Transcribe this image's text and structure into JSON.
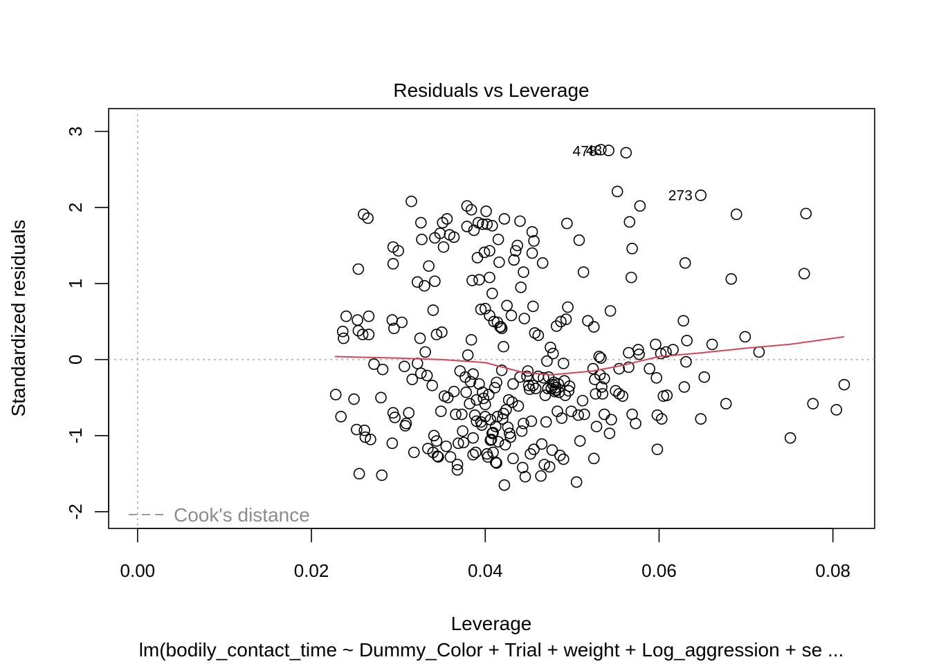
{
  "chart_data": {
    "type": "scatter",
    "title": "Residuals vs Leverage",
    "xlabel": "Leverage",
    "ylabel": "Standardized residuals",
    "subtitle": "lm(bodily_contact_time ~ Dummy_Color + Trial + weight + Log_aggression + se ...",
    "xlim": [
      -0.00333,
      0.0848
    ],
    "ylim": [
      -2.22,
      3.3
    ],
    "x_ticks": [
      0.0,
      0.02,
      0.04,
      0.06,
      0.08
    ],
    "x_tick_labels": [
      "0.00",
      "0.02",
      "0.04",
      "0.06",
      "0.08"
    ],
    "y_ticks": [
      -2,
      -1,
      0,
      1,
      2,
      3
    ],
    "y_tick_labels": [
      "-2",
      "-1",
      "0",
      "1",
      "2",
      "3"
    ],
    "legend": {
      "label": "Cook's distance",
      "position": "bottom-left",
      "color": "#8c8c8c"
    },
    "reference_lines": {
      "h": 0,
      "v": 0,
      "style": "dotted",
      "color": "#aaaaaa"
    },
    "smoother_color": "#d9435a",
    "annotations": [
      {
        "text": "478",
        "x": 0.0538,
        "y": 2.74
      },
      {
        "text": "273",
        "x": 0.0648,
        "y": 2.16
      },
      {
        "text": "43",
        "x": 0.0544,
        "y": 2.75
      }
    ],
    "smoother": [
      {
        "x": 0.0227,
        "y": 0.04
      },
      {
        "x": 0.03,
        "y": 0.02
      },
      {
        "x": 0.035,
        "y": 0.0
      },
      {
        "x": 0.04,
        "y": -0.04
      },
      {
        "x": 0.0444,
        "y": -0.17
      },
      {
        "x": 0.0476,
        "y": -0.2
      },
      {
        "x": 0.0524,
        "y": -0.15
      },
      {
        "x": 0.0556,
        "y": -0.08
      },
      {
        "x": 0.06,
        "y": 0.04
      },
      {
        "x": 0.065,
        "y": 0.09
      },
      {
        "x": 0.07,
        "y": 0.15
      },
      {
        "x": 0.075,
        "y": 0.2
      },
      {
        "x": 0.0813,
        "y": 0.3
      }
    ],
    "points": [
      [
        0.0228,
        -0.46
      ],
      [
        0.0234,
        -0.75
      ],
      [
        0.0236,
        0.37
      ],
      [
        0.0237,
        0.28
      ],
      [
        0.024,
        0.57
      ],
      [
        0.0249,
        -0.52
      ],
      [
        0.0252,
        -0.92
      ],
      [
        0.0253,
        0.52
      ],
      [
        0.0254,
        0.38
      ],
      [
        0.0254,
        1.19
      ],
      [
        0.0255,
        -1.5
      ],
      [
        0.0259,
        0.33
      ],
      [
        0.026,
        1.91
      ],
      [
        0.0261,
        -0.93
      ],
      [
        0.0262,
        -1.02
      ],
      [
        0.0265,
        1.86
      ],
      [
        0.0266,
        0.57
      ],
      [
        0.0266,
        0.33
      ],
      [
        0.0268,
        -1.05
      ],
      [
        0.0272,
        -0.06
      ],
      [
        0.028,
        -0.5
      ],
      [
        0.0281,
        -1.52
      ],
      [
        0.0282,
        -0.13
      ],
      [
        0.0293,
        -1.1
      ],
      [
        0.0293,
        0.52
      ],
      [
        0.0294,
        1.48
      ],
      [
        0.0294,
        1.26
      ],
      [
        0.0294,
        -0.7
      ],
      [
        0.0295,
        0.41
      ],
      [
        0.0296,
        -0.76
      ],
      [
        0.03,
        1.43
      ],
      [
        0.0304,
        0.49
      ],
      [
        0.0307,
        -0.09
      ],
      [
        0.0308,
        -0.87
      ],
      [
        0.0309,
        -0.84
      ],
      [
        0.0312,
        -0.7
      ],
      [
        0.0315,
        2.08
      ],
      [
        0.0316,
        -0.26
      ],
      [
        0.0318,
        -1.22
      ],
      [
        0.0322,
        -0.05
      ],
      [
        0.0322,
        1.02
      ],
      [
        0.0325,
        0.28
      ],
      [
        0.0326,
        -0.18
      ],
      [
        0.0326,
        1.8
      ],
      [
        0.0327,
        1.58
      ],
      [
        0.033,
        0.97
      ],
      [
        0.0331,
        0.1
      ],
      [
        0.0333,
        -0.21
      ],
      [
        0.0334,
        -1.17
      ],
      [
        0.0335,
        1.23
      ],
      [
        0.0339,
        -0.34
      ],
      [
        0.034,
        0.65
      ],
      [
        0.034,
        -1.22
      ],
      [
        0.0341,
        -1.0
      ],
      [
        0.0342,
        1.03
      ],
      [
        0.0342,
        1.6
      ],
      [
        0.0344,
        0.33
      ],
      [
        0.0344,
        -1.07
      ],
      [
        0.0345,
        -1.27
      ],
      [
        0.0346,
        -1.28
      ],
      [
        0.0348,
        1.66
      ],
      [
        0.0349,
        -0.68
      ],
      [
        0.035,
        0.36
      ],
      [
        0.0351,
        1.8
      ],
      [
        0.0352,
        1.48
      ],
      [
        0.0353,
        -0.48
      ],
      [
        0.0355,
        -1.14
      ],
      [
        0.0356,
        1.85
      ],
      [
        0.0357,
        -0.5
      ],
      [
        0.0359,
        1.64
      ],
      [
        0.036,
        -1.28
      ],
      [
        0.0364,
        -0.42
      ],
      [
        0.0364,
        1.61
      ],
      [
        0.0366,
        -0.72
      ],
      [
        0.0368,
        -1.38
      ],
      [
        0.0368,
        -1.45
      ],
      [
        0.0369,
        -1.1
      ],
      [
        0.0371,
        -0.15
      ],
      [
        0.0373,
        -0.72
      ],
      [
        0.0374,
        -0.94
      ],
      [
        0.0375,
        -1.09
      ],
      [
        0.0377,
        -0.23
      ],
      [
        0.0378,
        -0.43
      ],
      [
        0.0379,
        1.75
      ],
      [
        0.0379,
        2.02
      ],
      [
        0.038,
        0.06
      ],
      [
        0.0382,
        -0.58
      ],
      [
        0.0383,
        -0.29
      ],
      [
        0.0384,
        1.97
      ],
      [
        0.0384,
        0.26
      ],
      [
        0.0385,
        1.04
      ],
      [
        0.0386,
        -0.19
      ],
      [
        0.0386,
        -1.03
      ],
      [
        0.0386,
        -1.25
      ],
      [
        0.0387,
        1.7
      ],
      [
        0.0388,
        -0.73
      ],
      [
        0.0389,
        -1.22
      ],
      [
        0.039,
        -0.53
      ],
      [
        0.039,
        -0.81
      ],
      [
        0.0391,
        1.34
      ],
      [
        0.0392,
        1.8
      ],
      [
        0.0393,
        -0.32
      ],
      [
        0.0393,
        1.05
      ],
      [
        0.0395,
        0.66
      ],
      [
        0.0395,
        -0.82
      ],
      [
        0.0396,
        -0.86
      ],
      [
        0.0397,
        -0.43
      ],
      [
        0.0397,
        1.78
      ],
      [
        0.0398,
        -0.51
      ],
      [
        0.0399,
        1.41
      ],
      [
        0.04,
        0.67
      ],
      [
        0.04,
        -0.59
      ],
      [
        0.04,
        -0.75
      ],
      [
        0.0401,
        1.95
      ],
      [
        0.0402,
        1.78
      ],
      [
        0.0402,
        -1.24
      ],
      [
        0.0403,
        -1.28
      ],
      [
        0.0404,
        -0.46
      ],
      [
        0.0405,
        0.58
      ],
      [
        0.0405,
        1.43
      ],
      [
        0.0405,
        1.08
      ],
      [
        0.0406,
        -0.79
      ],
      [
        0.0406,
        -1.06
      ],
      [
        0.0407,
        -1.05
      ],
      [
        0.0408,
        0.87
      ],
      [
        0.0408,
        1.76
      ],
      [
        0.0408,
        -0.97
      ],
      [
        0.0409,
        -0.96
      ],
      [
        0.0409,
        -1.22
      ],
      [
        0.041,
        0.5
      ],
      [
        0.0411,
        -0.37
      ],
      [
        0.0412,
        -0.88
      ],
      [
        0.0412,
        -1.35
      ],
      [
        0.0413,
        -1.36
      ],
      [
        0.0413,
        -0.3
      ],
      [
        0.0414,
        0.49
      ],
      [
        0.0414,
        -0.75
      ],
      [
        0.0415,
        1.58
      ],
      [
        0.0415,
        -1.08
      ],
      [
        0.0416,
        1.28
      ],
      [
        0.0417,
        0.43
      ],
      [
        0.0418,
        0.43
      ],
      [
        0.0419,
        0.41
      ],
      [
        0.0419,
        -0.14
      ],
      [
        0.042,
        -0.78
      ],
      [
        0.0421,
        0.17
      ],
      [
        0.0421,
        -0.71
      ],
      [
        0.0422,
        1.85
      ],
      [
        0.0422,
        -1.65
      ],
      [
        0.0423,
        -1.12
      ],
      [
        0.0424,
        -0.66
      ],
      [
        0.0425,
        0.71
      ],
      [
        0.0426,
        -0.89
      ],
      [
        0.0427,
        -0.53
      ],
      [
        0.0428,
        -0.97
      ],
      [
        0.0429,
        -1.02
      ],
      [
        0.043,
        0.58
      ],
      [
        0.0431,
        -0.56
      ],
      [
        0.0432,
        -0.32
      ],
      [
        0.0432,
        -1.3
      ],
      [
        0.0433,
        1.31
      ],
      [
        0.0435,
        1.43
      ],
      [
        0.0437,
        1.5
      ],
      [
        0.0438,
        -0.61
      ],
      [
        0.044,
        1.82
      ],
      [
        0.044,
        -0.23
      ],
      [
        0.0441,
        0.95
      ],
      [
        0.0442,
        -0.94
      ],
      [
        0.0443,
        -1.42
      ],
      [
        0.0444,
        1.15
      ],
      [
        0.0444,
        -0.84
      ],
      [
        0.0445,
        0.54
      ],
      [
        0.0446,
        -1.54
      ],
      [
        0.0448,
        -0.22
      ],
      [
        0.0449,
        -0.15
      ],
      [
        0.045,
        -0.34
      ],
      [
        0.0451,
        -0.39
      ],
      [
        0.0452,
        -1.24
      ],
      [
        0.0453,
        -0.81
      ],
      [
        0.0454,
        1.4
      ],
      [
        0.0454,
        1.68
      ],
      [
        0.0455,
        -0.34
      ],
      [
        0.0455,
        0.7
      ],
      [
        0.0456,
        -1.18
      ],
      [
        0.0456,
        1.56
      ],
      [
        0.0457,
        0.35
      ],
      [
        0.0458,
        -0.38
      ],
      [
        0.0461,
        0.32
      ],
      [
        0.0461,
        -0.22
      ],
      [
        0.0464,
        -1.53
      ],
      [
        0.0465,
        -1.11
      ],
      [
        0.0466,
        1.27
      ],
      [
        0.0467,
        -0.24
      ],
      [
        0.0468,
        -1.38
      ],
      [
        0.0469,
        -0.47
      ],
      [
        0.047,
        -0.82
      ],
      [
        0.0471,
        -0.02
      ],
      [
        0.0472,
        -0.38
      ],
      [
        0.0473,
        -0.23
      ],
      [
        0.0474,
        -1.41
      ],
      [
        0.0475,
        0.16
      ],
      [
        0.0476,
        -0.38
      ],
      [
        0.0477,
        -1.19
      ],
      [
        0.0478,
        0.08
      ],
      [
        0.0478,
        -0.33
      ],
      [
        0.0479,
        -0.3
      ],
      [
        0.048,
        -0.42
      ],
      [
        0.0481,
        -0.37
      ],
      [
        0.0481,
        -0.4
      ],
      [
        0.0482,
        0.44
      ],
      [
        0.0483,
        -0.68
      ],
      [
        0.0484,
        -0.32
      ],
      [
        0.0485,
        -0.43
      ],
      [
        0.0486,
        -1.26
      ],
      [
        0.0487,
        0.5
      ],
      [
        0.0488,
        -0.77
      ],
      [
        0.049,
        -1.31
      ],
      [
        0.049,
        -0.05
      ],
      [
        0.0491,
        -0.28
      ],
      [
        0.0492,
        -0.47
      ],
      [
        0.0493,
        0.53
      ],
      [
        0.0494,
        1.79
      ],
      [
        0.0495,
        0.69
      ],
      [
        0.0496,
        -0.41
      ],
      [
        0.0497,
        -0.35
      ],
      [
        0.0499,
        -0.68
      ],
      [
        0.0505,
        -1.61
      ],
      [
        0.0507,
        -0.73
      ],
      [
        0.0508,
        1.57
      ],
      [
        0.0509,
        -1.07
      ],
      [
        0.0512,
        -0.54
      ],
      [
        0.0513,
        1.15
      ],
      [
        0.0514,
        -0.72
      ],
      [
        0.0518,
        0.51
      ],
      [
        0.0524,
        -0.12
      ],
      [
        0.0525,
        0.43
      ],
      [
        0.0525,
        -1.3
      ],
      [
        0.0526,
        -0.26
      ],
      [
        0.0527,
        -0.45
      ],
      [
        0.0528,
        -0.88
      ],
      [
        0.0531,
        0.04
      ],
      [
        0.0532,
        -0.2
      ],
      [
        0.0533,
        0.02
      ],
      [
        0.0534,
        -0.36
      ],
      [
        0.0535,
        -0.45
      ],
      [
        0.0537,
        -0.25
      ],
      [
        0.0537,
        -0.72
      ],
      [
        0.0543,
        -0.97
      ],
      [
        0.0544,
        0.64
      ],
      [
        0.0545,
        -0.79
      ],
      [
        0.055,
        -0.41
      ],
      [
        0.0552,
        2.21
      ],
      [
        0.0554,
        -0.45
      ],
      [
        0.0554,
        -0.12
      ],
      [
        0.0558,
        -0.48
      ],
      [
        0.0562,
        2.72
      ],
      [
        0.0565,
        0.09
      ],
      [
        0.0565,
        -0.1
      ],
      [
        0.0566,
        1.81
      ],
      [
        0.0568,
        1.08
      ],
      [
        0.0569,
        1.46
      ],
      [
        0.0569,
        -0.72
      ],
      [
        0.0573,
        -0.84
      ],
      [
        0.0576,
        0.13
      ],
      [
        0.0577,
        0.07
      ],
      [
        0.0578,
        2.02
      ],
      [
        0.0589,
        -0.12
      ],
      [
        0.0596,
        0.2
      ],
      [
        0.0597,
        -0.24
      ],
      [
        0.0598,
        -0.73
      ],
      [
        0.0598,
        -1.18
      ],
      [
        0.0602,
        0.08
      ],
      [
        0.0603,
        -0.78
      ],
      [
        0.0605,
        -0.48
      ],
      [
        0.0608,
        0.1
      ],
      [
        0.0609,
        -0.47
      ],
      [
        0.0616,
        0.13
      ],
      [
        0.0628,
        0.51
      ],
      [
        0.0629,
        -0.36
      ],
      [
        0.063,
        1.27
      ],
      [
        0.0631,
        -0.03
      ],
      [
        0.0632,
        0.25
      ],
      [
        0.0648,
        2.16
      ],
      [
        0.0648,
        -0.78
      ],
      [
        0.0652,
        -0.23
      ],
      [
        0.0661,
        0.2
      ],
      [
        0.0677,
        -0.58
      ],
      [
        0.0683,
        1.06
      ],
      [
        0.0689,
        1.91
      ],
      [
        0.0699,
        0.3
      ],
      [
        0.0715,
        0.1
      ],
      [
        0.0751,
        -1.03
      ],
      [
        0.0767,
        1.13
      ],
      [
        0.0769,
        1.92
      ],
      [
        0.0777,
        -0.58
      ],
      [
        0.0804,
        -0.66
      ],
      [
        0.0813,
        -0.33
      ],
      [
        0.0542,
        2.75
      ],
      [
        0.0533,
        2.76
      ]
    ]
  }
}
